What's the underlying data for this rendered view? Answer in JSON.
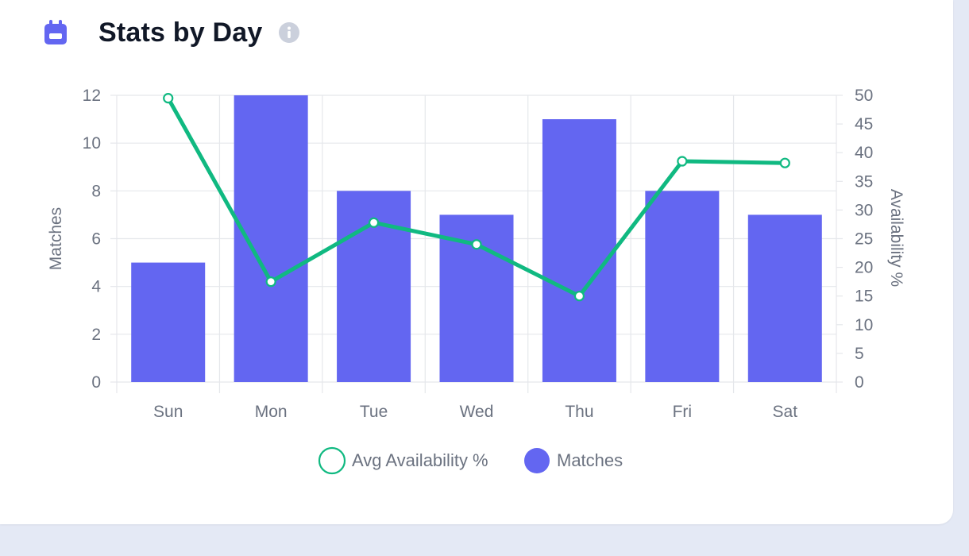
{
  "header": {
    "title": "Stats by Day",
    "icon": "calendar-icon",
    "info_icon": "info-icon"
  },
  "colors": {
    "bar": "#6366f1",
    "line": "#10b981",
    "grid": "#e5e7eb",
    "axis_text": "#6b7280"
  },
  "chart_data": {
    "type": "bar",
    "categories": [
      "Sun",
      "Mon",
      "Tue",
      "Wed",
      "Thu",
      "Fri",
      "Sat"
    ],
    "series": [
      {
        "name": "Matches",
        "type": "bar",
        "axis": "left",
        "values": [
          5,
          12,
          8,
          7,
          11,
          8,
          7
        ]
      },
      {
        "name": "Avg Availability %",
        "type": "line",
        "axis": "right",
        "values": [
          49.5,
          17.5,
          27.8,
          24,
          15,
          38.5,
          38.2
        ]
      }
    ],
    "ylabel": "Matches",
    "ylim": [
      0,
      12
    ],
    "yticks": [
      0,
      2,
      4,
      6,
      8,
      10,
      12
    ],
    "y2label": "Availability %",
    "y2lim": [
      0,
      50
    ],
    "y2ticks": [
      0,
      5,
      10,
      15,
      20,
      25,
      30,
      35,
      40,
      45,
      50
    ],
    "grid": true,
    "legend": {
      "placement": "bottom",
      "entries": [
        "Avg Availability %",
        "Matches"
      ]
    }
  }
}
